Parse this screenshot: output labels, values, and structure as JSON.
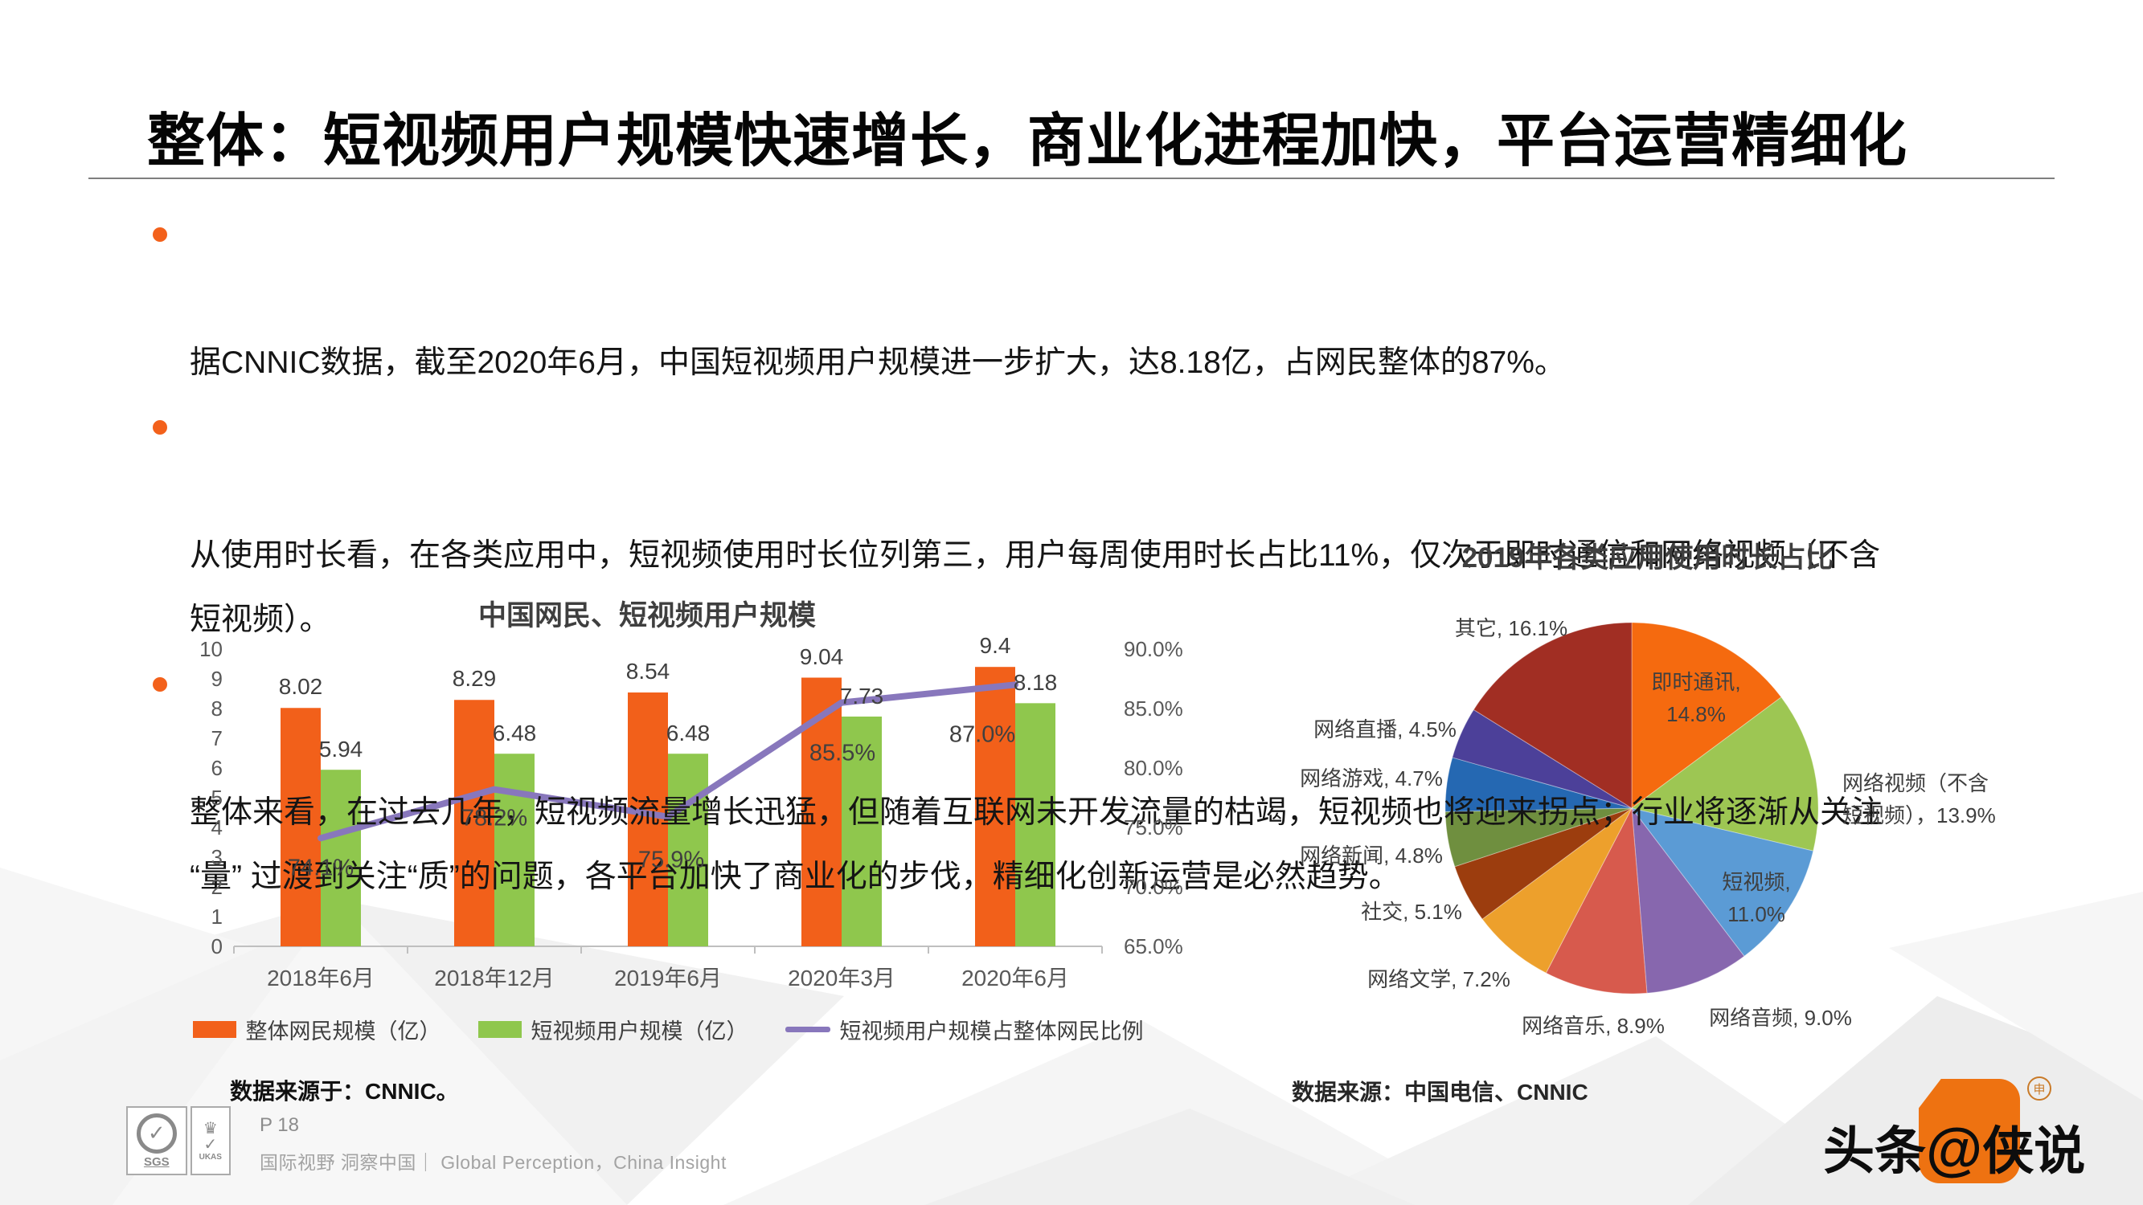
{
  "slide": {
    "title": "整体：短视频用户规模快速增长，商业化进程加快，平台运营精细化",
    "bullets": [
      {
        "text": "据CNNIC数据，截至2020年6月，中国短视频用户规模进一步扩大，达8.18亿，占网民整体的87%。"
      },
      {
        "text": "从使用时长看，在各类应用中，短视频使用时长位列第三，用户每周使用时长占比11%，仅次于即时通信和网络视频（不含\n短视频）。"
      },
      {
        "text": "整体来看，在过去几年，短视频流量增长迅猛，但随着互联网未开发流量的枯竭，短视频也将迎来拐点；行业将逐渐从关注\n“量” 过渡到关注“质”的问题，各平台加快了商业化的步伐，精细化创新运营是必然趋势。"
      }
    ]
  },
  "left_footer": {
    "source": "数据来源于：CNNIC。",
    "page": "P 18",
    "tagline": "国际视野 洞察中国｜ Global Perception，China Insight",
    "logos": {
      "sgs": "SGS",
      "ukas": "UKAS",
      "sgs_check": "✓",
      "ukas_crown": "♛",
      "ukas_check": "✓",
      "ukas_sub": "005"
    }
  },
  "right_footer": {
    "source": "数据来源：中国电信、CNNIC"
  },
  "watermark": {
    "prefix": "头条",
    "at": "@",
    "suffix": "侠说",
    "reg": "申"
  },
  "chart_data": [
    {
      "type": "bar",
      "title": "中国网民、短视频用户规模",
      "categories": [
        "2018年6月",
        "2018年12月",
        "2019年6月",
        "2020年3月",
        "2020年6月"
      ],
      "series": [
        {
          "name": "整体网民规模（亿）",
          "kind": "bar",
          "color": "#f2601a",
          "values": [
            8.02,
            8.29,
            8.54,
            9.04,
            9.4
          ]
        },
        {
          "name": "短视频用户规模（亿）",
          "kind": "bar",
          "color": "#8fc74d",
          "values": [
            5.94,
            6.48,
            6.48,
            7.73,
            8.18
          ]
        },
        {
          "name": "短视频用户规模占整体网民比例",
          "kind": "line",
          "color": "#8877bc",
          "unit": "%",
          "values": [
            74.1,
            78.2,
            75.9,
            85.5,
            87.0
          ]
        }
      ],
      "left_axis": {
        "min": 0,
        "max": 10,
        "ticks": [
          0,
          1,
          2,
          3,
          4,
          5,
          6,
          7,
          8,
          9,
          10
        ]
      },
      "right_axis": {
        "min": 65,
        "max": 90,
        "tick_values": [
          90,
          85,
          80,
          75,
          70,
          65
        ],
        "tick_labels": [
          "90.0%",
          "85.0%",
          "80.0%",
          "75.0%",
          "70.0%",
          "65.0%"
        ]
      },
      "grid": false,
      "legend_position": "bottom"
    },
    {
      "type": "pie",
      "title": "2019年各类应用使用时长占比",
      "slices": [
        {
          "label": "即时通讯",
          "value": 14.8,
          "color": "#f56a0f",
          "display": "即时通讯,\n14.8%",
          "placement": "inside"
        },
        {
          "label": "网络视频（不含短视频）",
          "value": 13.9,
          "color": "#9dc653",
          "display": "网络视频（不含\n短视频），13.9%",
          "placement": "outside"
        },
        {
          "label": "短视频",
          "value": 11.0,
          "color": "#5b9bd5",
          "display": "短视频,\n11.0%",
          "placement": "inside"
        },
        {
          "label": "网络音频",
          "value": 9.0,
          "color": "#8767ae",
          "display": "网络音频, 9.0%",
          "placement": "outside"
        },
        {
          "label": "网络音乐",
          "value": 8.9,
          "color": "#d75a4d",
          "display": "网络音乐, 8.9%",
          "placement": "outside"
        },
        {
          "label": "网络文学",
          "value": 7.2,
          "color": "#eda02c",
          "display": "网络文学, 7.2%",
          "placement": "outside"
        },
        {
          "label": "社交",
          "value": 5.1,
          "color": "#9c3d0e",
          "display": "社交, 5.1%",
          "placement": "outside"
        },
        {
          "label": "网络新闻",
          "value": 4.8,
          "color": "#6f8f3f",
          "display": "网络新闻, 4.8%",
          "placement": "outside"
        },
        {
          "label": "网络游戏",
          "value": 4.7,
          "color": "#2568b2",
          "display": "网络游戏, 4.7%",
          "placement": "outside"
        },
        {
          "label": "网络直播",
          "value": 4.5,
          "color": "#4c4099",
          "display": "网络直播, 4.5%",
          "placement": "outside"
        },
        {
          "label": "其它",
          "value": 16.1,
          "color": "#a12e23",
          "display": "其它, 16.1%",
          "placement": "outside"
        }
      ]
    }
  ]
}
